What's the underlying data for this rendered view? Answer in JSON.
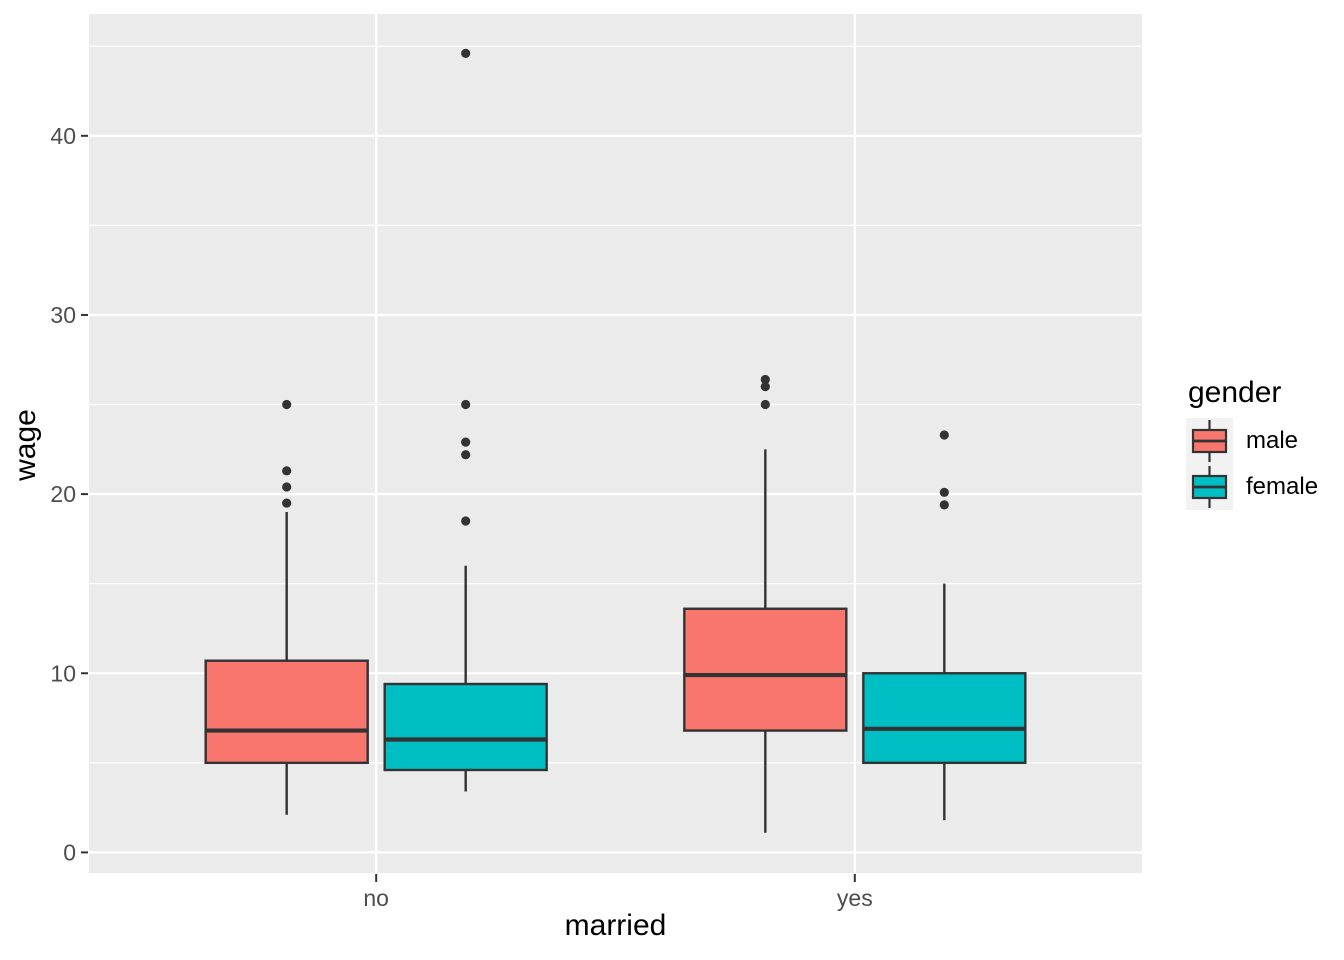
{
  "chart_data": {
    "type": "boxplot",
    "title": "",
    "xlabel": "married",
    "ylabel": "wage",
    "categories": [
      "no",
      "yes"
    ],
    "legend_title": "gender",
    "legend_position": "right",
    "grid": "on",
    "y_ticks": [
      0,
      10,
      20,
      30,
      40
    ],
    "y_minor_ticks": [
      5,
      15,
      25,
      35,
      45
    ],
    "ylim": [
      -1.15,
      46.8
    ],
    "series": [
      {
        "name": "male",
        "color": "#F8766D",
        "boxes": [
          {
            "category": "no",
            "whisker_low": 2.1,
            "q1": 5.0,
            "median": 6.8,
            "q3": 10.7,
            "whisker_high": 19.0,
            "outliers": [
              19.5,
              20.4,
              21.3,
              25.0
            ]
          },
          {
            "category": "yes",
            "whisker_low": 1.1,
            "q1": 6.8,
            "median": 9.9,
            "q3": 13.6,
            "whisker_high": 22.5,
            "outliers": [
              25.0,
              26.0,
              26.4
            ]
          }
        ]
      },
      {
        "name": "female",
        "color": "#00BFC4",
        "boxes": [
          {
            "category": "no",
            "whisker_low": 3.4,
            "q1": 4.6,
            "median": 6.3,
            "q3": 9.4,
            "whisker_high": 16.0,
            "outliers": [
              18.5,
              22.2,
              22.9,
              25.0,
              44.6
            ]
          },
          {
            "category": "yes",
            "whisker_low": 1.8,
            "q1": 5.0,
            "median": 6.9,
            "q3": 10.0,
            "whisker_high": 15.0,
            "outliers": [
              19.4,
              20.1,
              23.3
            ]
          }
        ]
      }
    ]
  },
  "axes": {
    "x_title": "married",
    "y_title": "wage",
    "x_tick_labels": [
      "no",
      "yes"
    ],
    "y_tick_labels": [
      "0",
      "10",
      "20",
      "30",
      "40"
    ]
  },
  "legend": {
    "title": "gender",
    "entries": [
      {
        "label": "male",
        "color": "#F8766D"
      },
      {
        "label": "female",
        "color": "#00BFC4"
      }
    ]
  },
  "colors": {
    "background": "#FFFFFF",
    "panel_bg": "#EBEBEB",
    "grid": "#FFFFFF",
    "box_outline": "#333333",
    "outlier": "#333333",
    "axis_text": "#4D4D4D",
    "tick_mark": "#333333",
    "title_text": "#000000",
    "legend_key_bg": "#F2F2F2"
  }
}
